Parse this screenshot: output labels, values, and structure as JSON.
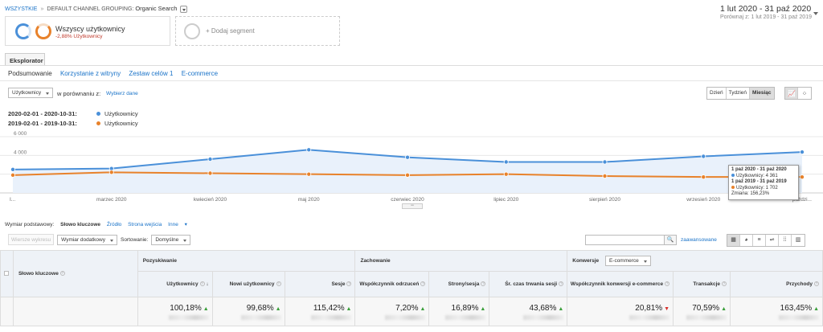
{
  "breadcrumb": {
    "all": "WSZYSTKIE",
    "grouping_label": "DEFAULT CHANNEL GROUPING:",
    "grouping_value": "Organic Search"
  },
  "daterange": {
    "main": "1 lut 2020 - 31 paź 2020",
    "compare_label": "Porównaj z:",
    "compare_range": "1 lut 2019 - 31 paź 2019"
  },
  "segments": {
    "primary_title": "Wszyscy użytkownicy",
    "primary_sub": "-2,88% Użytkownicy",
    "add_label": "+ Dodaj segment"
  },
  "tabs": {
    "explorer": "Eksplorator"
  },
  "subtabs": [
    "Podsumowanie",
    "Korzystanie z witryny",
    "Zestaw celów 1",
    "E-commerce"
  ],
  "controls": {
    "metric": "Użytkownicy",
    "compare_to": "w porównaniu z:",
    "pick_data": "Wybierz dane",
    "periods": [
      "Dzień",
      "Tydzień",
      "Miesiąc"
    ],
    "active_period": "Miesiąc"
  },
  "legend": [
    {
      "range": "2020-02-01 - 2020-10-31:",
      "name": "Użytkownicy",
      "color": "#4a90d9"
    },
    {
      "range": "2019-02-01 - 2019-10-31:",
      "name": "Użytkownicy",
      "color": "#e8822b"
    }
  ],
  "chart_data": {
    "type": "line",
    "y_ticks": [
      "6 000",
      "4 000",
      "2 000"
    ],
    "ylim": [
      0,
      6000
    ],
    "x_labels": [
      "I...",
      "marzec 2020",
      "kwiecień 2020",
      "maj 2020",
      "czerwiec 2020",
      "lipiec 2020",
      "sierpień 2020",
      "wrzesień 2020",
      "paździ..."
    ],
    "series": [
      {
        "name": "Użytkownicy",
        "color": "#4a90d9",
        "values": [
          2500,
          2600,
          3600,
          4600,
          3800,
          3300,
          3300,
          3900,
          4361
        ]
      },
      {
        "name": "Użytkownicy",
        "color": "#e8822b",
        "values": [
          1900,
          2200,
          2100,
          2000,
          1900,
          2000,
          1800,
          1700,
          1702
        ]
      }
    ]
  },
  "tooltip": {
    "line1": "1 paź 2020 - 31 paź 2020",
    "line2": "Użytkownicy: 4 361",
    "line3": "1 paź 2019 - 31 paź 2019",
    "line4": "Użytkownicy: 1 702",
    "line5": "Zmiana: 156,23%"
  },
  "dimensions": {
    "label": "Wymiar podstawowy:",
    "active": "Słowo kluczowe",
    "options": [
      "Źródło",
      "Strona wejścia",
      "Inne"
    ]
  },
  "toolbar": {
    "plot_rows": "Wiersze wykresu",
    "secondary": "Wymiar dodatkowy",
    "sort_label": "Sortowanie:",
    "sort_value": "Domyślne",
    "advanced": "zaawansowane"
  },
  "table": {
    "dim_header": "Słowo kluczowe",
    "groups": {
      "acq": "Pozyskiwanie",
      "beh": "Zachowanie",
      "conv": "Konwersje",
      "conv_select": "E-commerce"
    },
    "columns": [
      "Użytkownicy",
      "Nowi użytkownicy",
      "Sesje",
      "Współczynnik odrzuceń",
      "Strony/sesja",
      "Śr. czas trwania sesji",
      "Współczynnik konwersji e-commerce",
      "Transakcje",
      "Przychody"
    ],
    "values": [
      "100,18%",
      "99,68%",
      "115,42%",
      "7,20%",
      "16,89%",
      "43,68%",
      "20,81%",
      "70,59%",
      "163,45%"
    ],
    "trend": [
      "up",
      "up",
      "up",
      "up",
      "up",
      "up",
      "down",
      "up",
      "up"
    ]
  }
}
